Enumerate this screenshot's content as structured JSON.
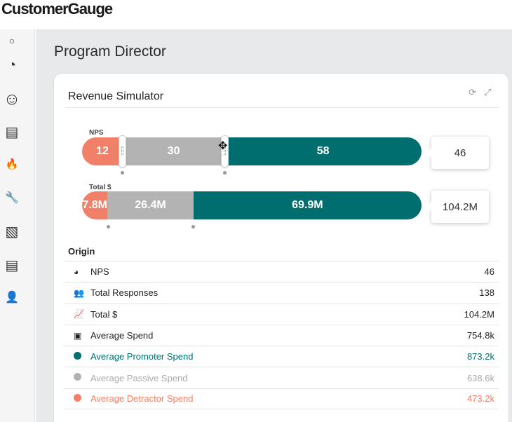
{
  "app": {
    "logo": "CustomerGauge"
  },
  "sidebar": {
    "items": [
      {
        "name": "circle-icon",
        "glyph": "○"
      },
      {
        "name": "gauge-icon",
        "glyph": "◔"
      },
      {
        "name": "smiley-icon",
        "glyph": "☺"
      },
      {
        "name": "document-icon",
        "glyph": "▤"
      },
      {
        "name": "flame-icon",
        "glyph": "🔥"
      },
      {
        "name": "wrench-icon",
        "glyph": "🔧"
      },
      {
        "name": "image-icon",
        "glyph": "▧"
      },
      {
        "name": "report-icon",
        "glyph": "▤"
      },
      {
        "name": "user-icon",
        "glyph": "👤"
      }
    ]
  },
  "page": {
    "title": "Program Director"
  },
  "card": {
    "title": "Revenue Simulator",
    "refresh_icon": "⟳",
    "expand_icon": "⤢",
    "nps": {
      "label": "NPS",
      "detractor": "12",
      "passive": "30",
      "promoter": "58",
      "result": "46",
      "shares": {
        "detractor": 0.12,
        "passive": 0.3,
        "promoter": 0.58
      }
    },
    "total": {
      "label": "Total $",
      "detractor": "7.8M",
      "passive": "26.4M",
      "promoter": "69.9M",
      "result": "104.2M",
      "shares": {
        "detractor": 0.075,
        "passive": 0.253,
        "promoter": 0.672
      }
    },
    "origin": {
      "title": "Origin",
      "rows": [
        {
          "icon": "gauge-icon",
          "glyph": "◕",
          "label": "NPS",
          "value": "46",
          "tone": ""
        },
        {
          "icon": "users-icon",
          "glyph": "👥",
          "label": "Total Responses",
          "value": "138",
          "tone": ""
        },
        {
          "icon": "line-chart-icon",
          "glyph": "📈",
          "label": "Total $",
          "value": "104.2M",
          "tone": ""
        },
        {
          "icon": "money-icon",
          "glyph": "▣",
          "label": "Average Spend",
          "value": "754.8k",
          "tone": ""
        },
        {
          "icon": "promoter-dot-icon",
          "glyph": "",
          "label": "Average Promoter Spend",
          "value": "873.2k",
          "tone": "pro"
        },
        {
          "icon": "passive-dot-icon",
          "glyph": "",
          "label": "Average Passive Spend",
          "value": "638.6k",
          "tone": "pas"
        },
        {
          "icon": "detractor-dot-icon",
          "glyph": "",
          "label": "Average Detractor Spend",
          "value": "473.2k",
          "tone": "det"
        }
      ]
    }
  },
  "colors": {
    "promoter": "#006e6e",
    "passive": "#b3b3b3",
    "detractor": "#f08068"
  }
}
